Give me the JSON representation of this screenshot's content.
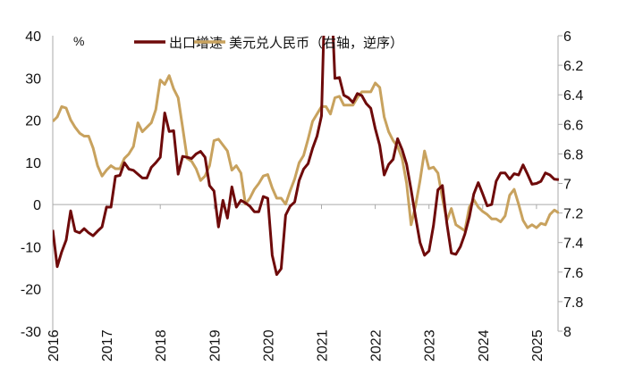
{
  "chart_data": {
    "type": "line",
    "title": "",
    "ylabel_left_unit": "%",
    "ylim_left": [
      -30,
      40
    ],
    "yticks_left": [
      "40",
      "30",
      "20",
      "10",
      "0",
      "-10",
      "-20",
      "-30"
    ],
    "ylim_right": [
      6,
      8
    ],
    "right_axis_inverted": true,
    "yticks_right": [
      "6",
      "6.2",
      "6.4",
      "6.6",
      "6.8",
      "7",
      "7.2",
      "7.4",
      "7.6",
      "7.8",
      "8"
    ],
    "xticks": [
      "2016",
      "2017",
      "2018",
      "2019",
      "2020",
      "2021",
      "2022",
      "2023",
      "2024",
      "2025"
    ],
    "legend_position": "top",
    "grid": false,
    "x": [
      "2016-01",
      "2016-02",
      "2016-03",
      "2016-04",
      "2016-05",
      "2016-06",
      "2016-07",
      "2016-08",
      "2016-09",
      "2016-10",
      "2016-11",
      "2016-12",
      "2017-01",
      "2017-02",
      "2017-03",
      "2017-04",
      "2017-05",
      "2017-06",
      "2017-07",
      "2017-08",
      "2017-09",
      "2017-10",
      "2017-11",
      "2017-12",
      "2018-01",
      "2018-02",
      "2018-03",
      "2018-04",
      "2018-05",
      "2018-06",
      "2018-07",
      "2018-08",
      "2018-09",
      "2018-10",
      "2018-11",
      "2018-12",
      "2019-01",
      "2019-02",
      "2019-03",
      "2019-04",
      "2019-05",
      "2019-06",
      "2019-07",
      "2019-08",
      "2019-09",
      "2019-10",
      "2019-11",
      "2019-12",
      "2020-01",
      "2020-02",
      "2020-03",
      "2020-04",
      "2020-05",
      "2020-06",
      "2020-07",
      "2020-08",
      "2020-09",
      "2020-10",
      "2020-11",
      "2020-12",
      "2021-01",
      "2021-02",
      "2021-03",
      "2021-04",
      "2021-05",
      "2021-06",
      "2021-07",
      "2021-08",
      "2021-09",
      "2021-10",
      "2021-11",
      "2021-12",
      "2022-01",
      "2022-02",
      "2022-03",
      "2022-04",
      "2022-05",
      "2022-06",
      "2022-07",
      "2022-08",
      "2022-09",
      "2022-10",
      "2022-11",
      "2022-12",
      "2023-01",
      "2023-02",
      "2023-03",
      "2023-04",
      "2023-05",
      "2023-06",
      "2023-07",
      "2023-08",
      "2023-09",
      "2023-10",
      "2023-11",
      "2023-12",
      "2024-01",
      "2024-02",
      "2024-03",
      "2024-04",
      "2024-05",
      "2024-06",
      "2024-07",
      "2024-08",
      "2024-09",
      "2024-10",
      "2024-11",
      "2024-12",
      "2025-01",
      "2025-02",
      "2025-03",
      "2025-04",
      "2025-05",
      "2025-06"
    ],
    "series": [
      {
        "name": "出口增速",
        "axis": "left",
        "color": "#6e0a0a",
        "values": [
          -6,
          -14.7,
          -11.2,
          -8.4,
          -1.5,
          -6.3,
          -6.7,
          -5.7,
          -6.7,
          -7.4,
          -6.3,
          -5.3,
          -0.6,
          -0.6,
          6.7,
          6.9,
          9.9,
          8.4,
          8.1,
          7.2,
          6.3,
          6.3,
          8.8,
          9.9,
          11.2,
          21.7,
          17.3,
          17.5,
          7.2,
          11.4,
          11.2,
          10.9,
          12,
          12.6,
          11.2,
          4.5,
          3.2,
          -5.3,
          1,
          -3.2,
          4.2,
          -0.6,
          1,
          0.4,
          -0.4,
          -1.7,
          -1.7,
          1.9,
          1.5,
          -12,
          -16.6,
          -15.2,
          -2.5,
          -0.4,
          0.6,
          5.7,
          8.4,
          9.7,
          13.3,
          16.2,
          21,
          60,
          55,
          29.9,
          30.1,
          25.9,
          25.3,
          24.2,
          26.3,
          25.8,
          23.9,
          22.8,
          18,
          14,
          7,
          9.5,
          10.7,
          15.6,
          13,
          9.5,
          3.5,
          -3,
          -9,
          -12,
          -11,
          -5,
          3.5,
          4.5,
          -4.5,
          -11.5,
          -11.8,
          -10,
          -7,
          -3,
          2.5,
          5.2,
          2.5,
          -0.3,
          0,
          5.5,
          7.5,
          7.5,
          6,
          7.3,
          7,
          9.4,
          7.2,
          4.8,
          5,
          5.5,
          7.5,
          7,
          6,
          5.9
        ]
      },
      {
        "name": "美元兑人民币（右轴，逆序）",
        "axis": "right",
        "color": "#c8a25e",
        "values": [
          6.58,
          6.55,
          6.48,
          6.49,
          6.57,
          6.62,
          6.66,
          6.68,
          6.68,
          6.76,
          6.88,
          6.95,
          6.91,
          6.88,
          6.9,
          6.9,
          6.83,
          6.8,
          6.75,
          6.59,
          6.65,
          6.62,
          6.59,
          6.5,
          6.3,
          6.33,
          6.27,
          6.36,
          6.42,
          6.62,
          6.83,
          6.85,
          6.9,
          6.98,
          6.95,
          6.88,
          6.71,
          6.7,
          6.74,
          6.78,
          6.91,
          6.88,
          6.93,
          7.14,
          7.1,
          7.04,
          7.0,
          6.95,
          6.94,
          7.03,
          7.1,
          7.1,
          7.14,
          7.05,
          6.97,
          6.86,
          6.81,
          6.7,
          6.58,
          6.53,
          6.48,
          6.48,
          6.53,
          6.42,
          6.41,
          6.47,
          6.47,
          6.47,
          6.42,
          6.38,
          6.38,
          6.38,
          6.32,
          6.35,
          6.55,
          6.65,
          6.71,
          6.75,
          6.83,
          7.0,
          7.28,
          7.15,
          6.98,
          6.78,
          6.9,
          6.89,
          6.93,
          7.1,
          7.25,
          7.17,
          7.28,
          7.3,
          7.32,
          7.16,
          7.11,
          7.16,
          7.19,
          7.21,
          7.24,
          7.24,
          7.26,
          7.22,
          7.08,
          7.04,
          7.14,
          7.25,
          7.3,
          7.28,
          7.3,
          7.27,
          7.28,
          7.21,
          7.18,
          7.2
        ]
      }
    ]
  }
}
